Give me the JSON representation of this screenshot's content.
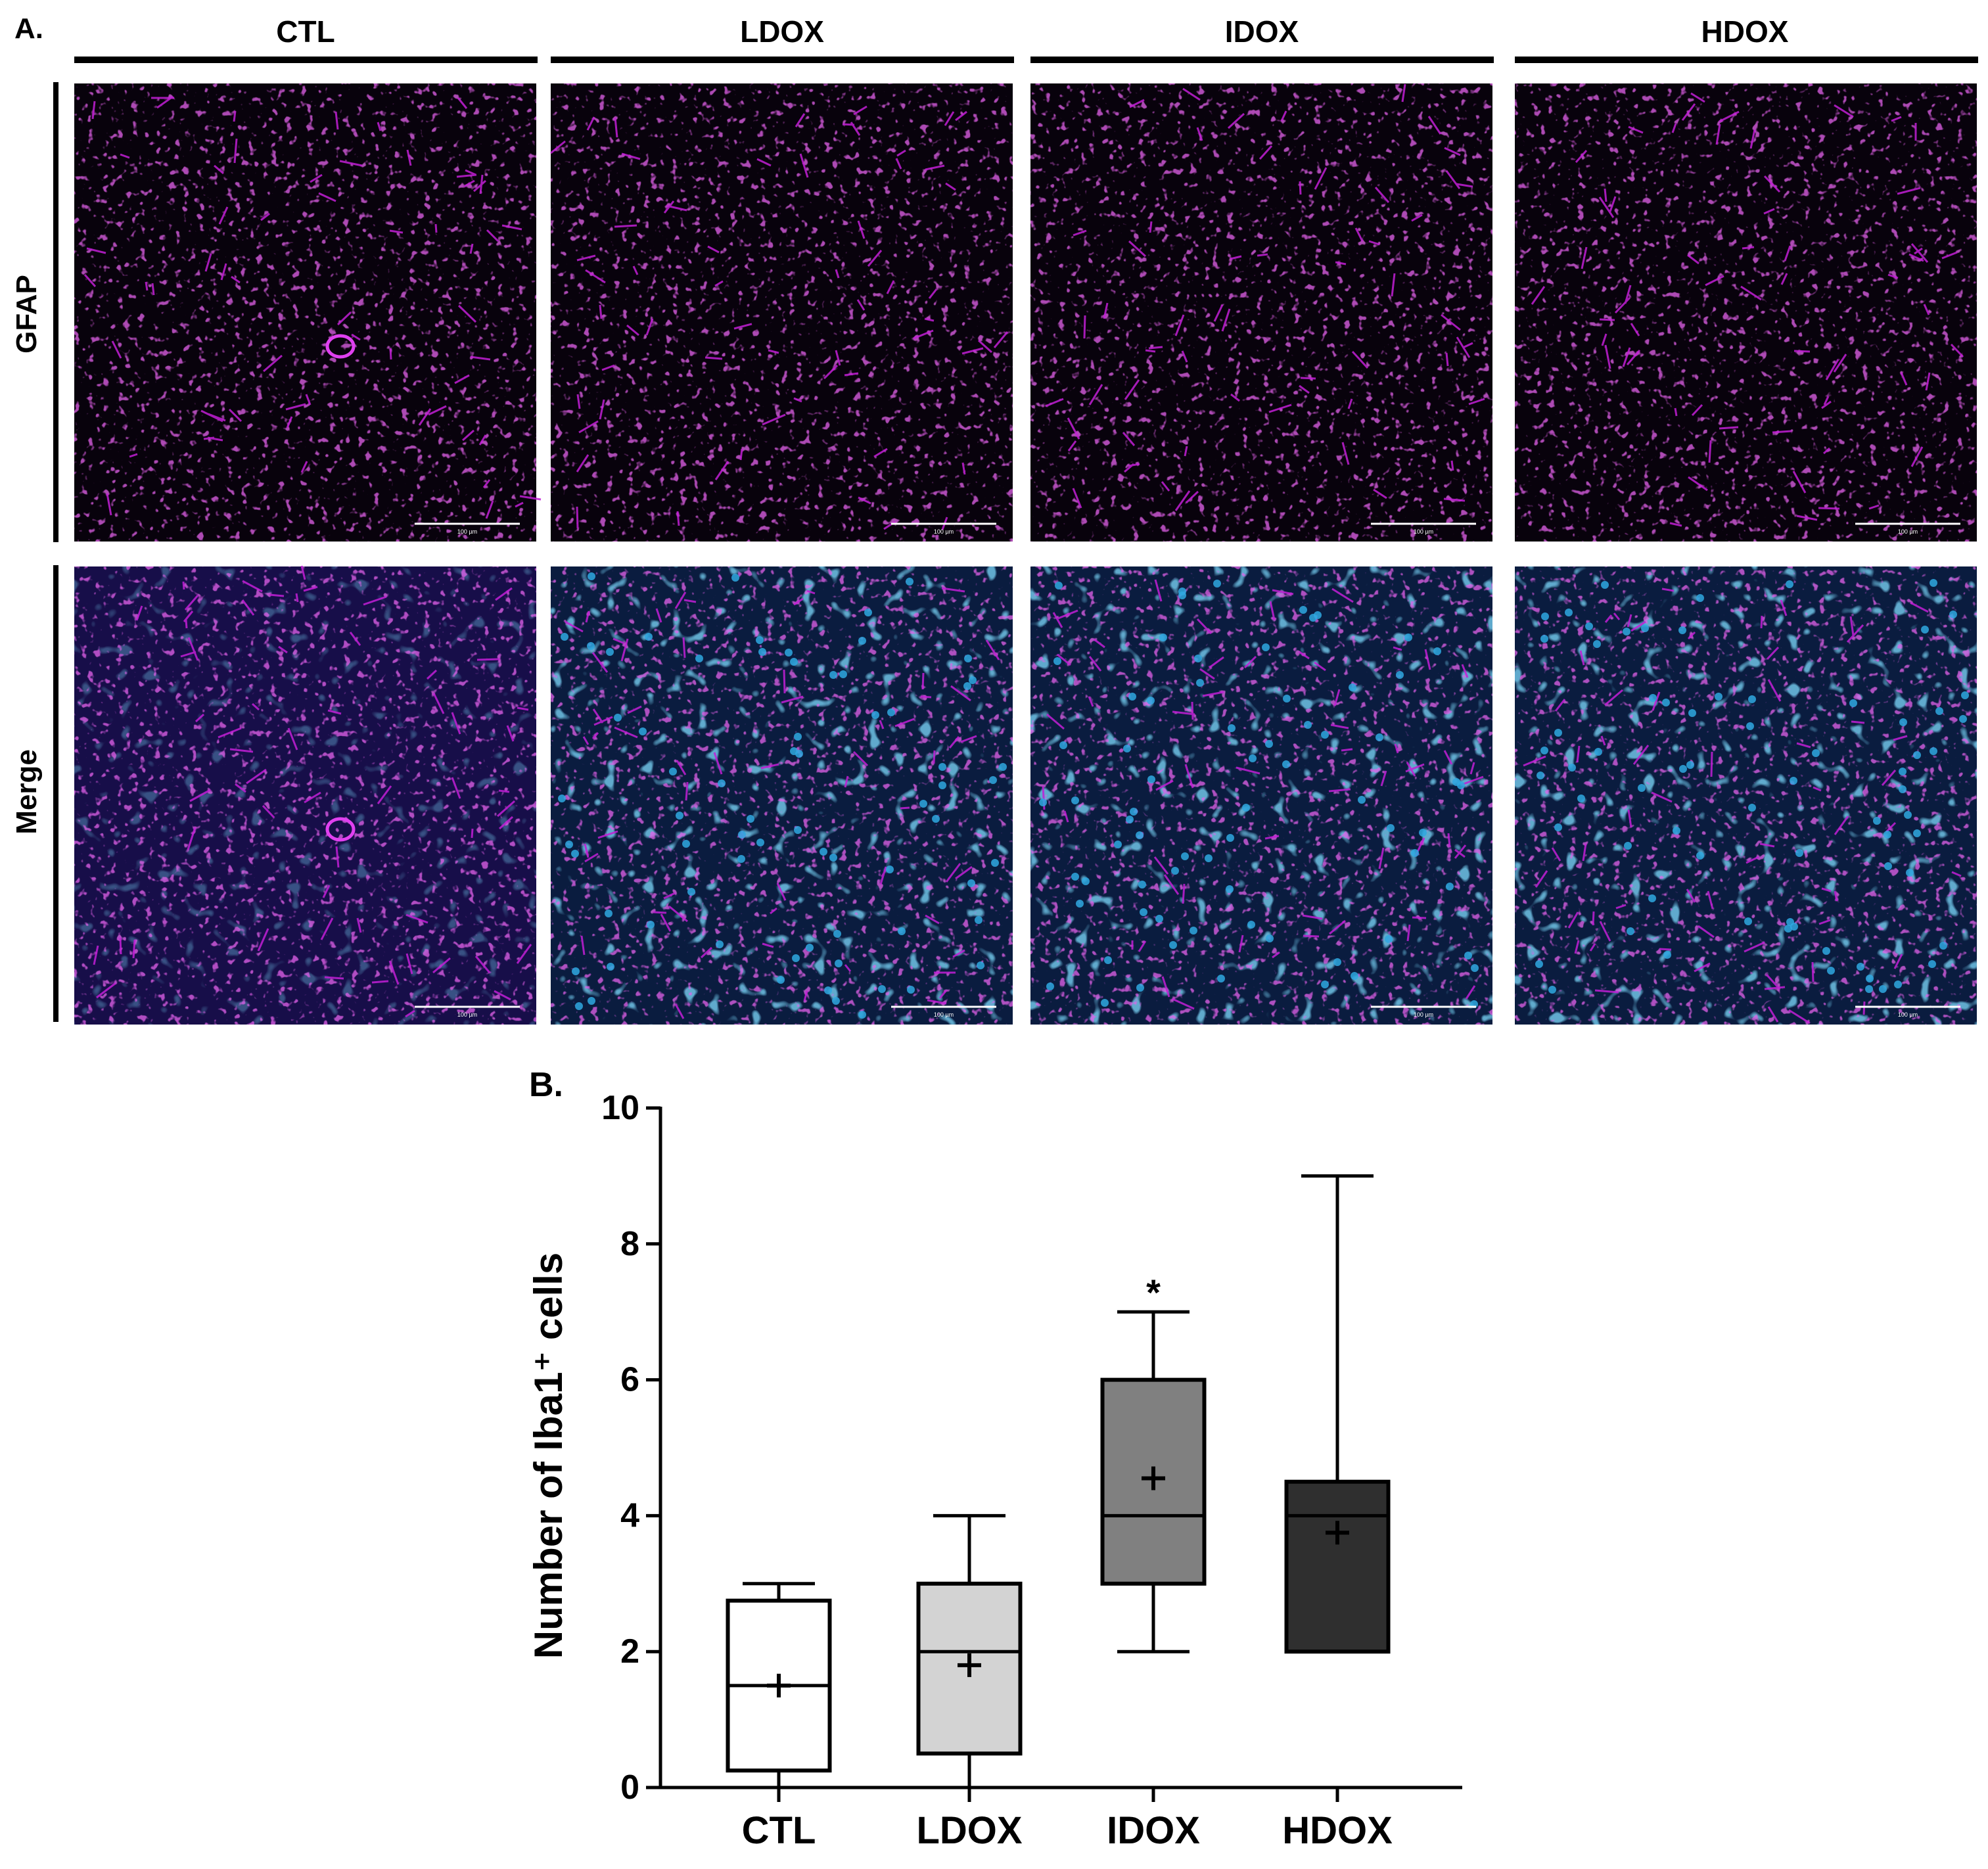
{
  "panel_a": {
    "label": "A.",
    "columns": [
      "CTL",
      "LDOX",
      "IDOX",
      "HDOX"
    ],
    "rows": [
      "GFAP",
      "Merge"
    ],
    "scale_bar_label": "100 µm",
    "colors": {
      "gfap_magenta": "#c21fd6",
      "nuclei_blue": "#2fa8e0",
      "background": "#08020c"
    }
  },
  "chart_data": {
    "type": "box",
    "panel_label": "B.",
    "title": "",
    "xlabel": "",
    "ylabel": "Number of Iba1⁺ cells",
    "ylim": [
      0,
      10
    ],
    "yticks": [
      0,
      2,
      4,
      6,
      8,
      10
    ],
    "grid": false,
    "categories": [
      "CTL",
      "LDOX",
      "IDOX",
      "HDOX"
    ],
    "boxes": [
      {
        "category": "CTL",
        "min": 0,
        "q1": 0.25,
        "median": 1.5,
        "q3": 2.75,
        "max": 3,
        "mean": 1.5,
        "fill": "#ffffff",
        "annotation": ""
      },
      {
        "category": "LDOX",
        "min": 0,
        "q1": 0.5,
        "median": 2,
        "q3": 3,
        "max": 4,
        "mean": 1.8,
        "fill": "#d3d3d3",
        "annotation": ""
      },
      {
        "category": "IDOX",
        "min": 2,
        "q1": 3,
        "median": 4,
        "q3": 6,
        "max": 7,
        "mean": 4.55,
        "fill": "#808080",
        "annotation": "*"
      },
      {
        "category": "HDOX",
        "min": 2,
        "q1": 2,
        "median": 4,
        "q3": 4.5,
        "max": 9,
        "mean": 3.75,
        "fill": "#2f2f2f",
        "annotation": ""
      }
    ]
  }
}
